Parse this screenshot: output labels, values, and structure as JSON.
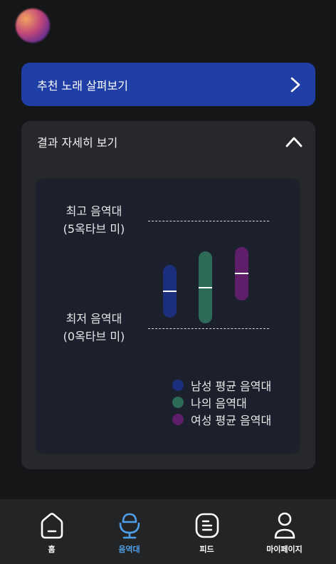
{
  "recommend": {
    "label": "추천 노래 살펴보기"
  },
  "result": {
    "title": "결과 자세히 보기",
    "top_range": {
      "line1": "최고 음역대",
      "line2": "(5옥타브 미)"
    },
    "bottom_range": {
      "line1": "최저 음역대",
      "line2": "(0옥타브 미)"
    },
    "legend": [
      {
        "label": "남성 평균 음역대",
        "color": "#1c2f7c"
      },
      {
        "label": "나의 음역대",
        "color": "#2e6a58"
      },
      {
        "label": "여성 평균 음역대",
        "color": "#5e1e6a"
      }
    ]
  },
  "nav": {
    "items": [
      {
        "label": "홈",
        "icon": "home-icon",
        "active": false
      },
      {
        "label": "음역대",
        "icon": "microphone-icon",
        "active": true
      },
      {
        "label": "피드",
        "icon": "feed-icon",
        "active": false
      },
      {
        "label": "마이페이지",
        "icon": "profile-icon",
        "active": false
      }
    ],
    "active_color": "#4f9fe8"
  }
}
